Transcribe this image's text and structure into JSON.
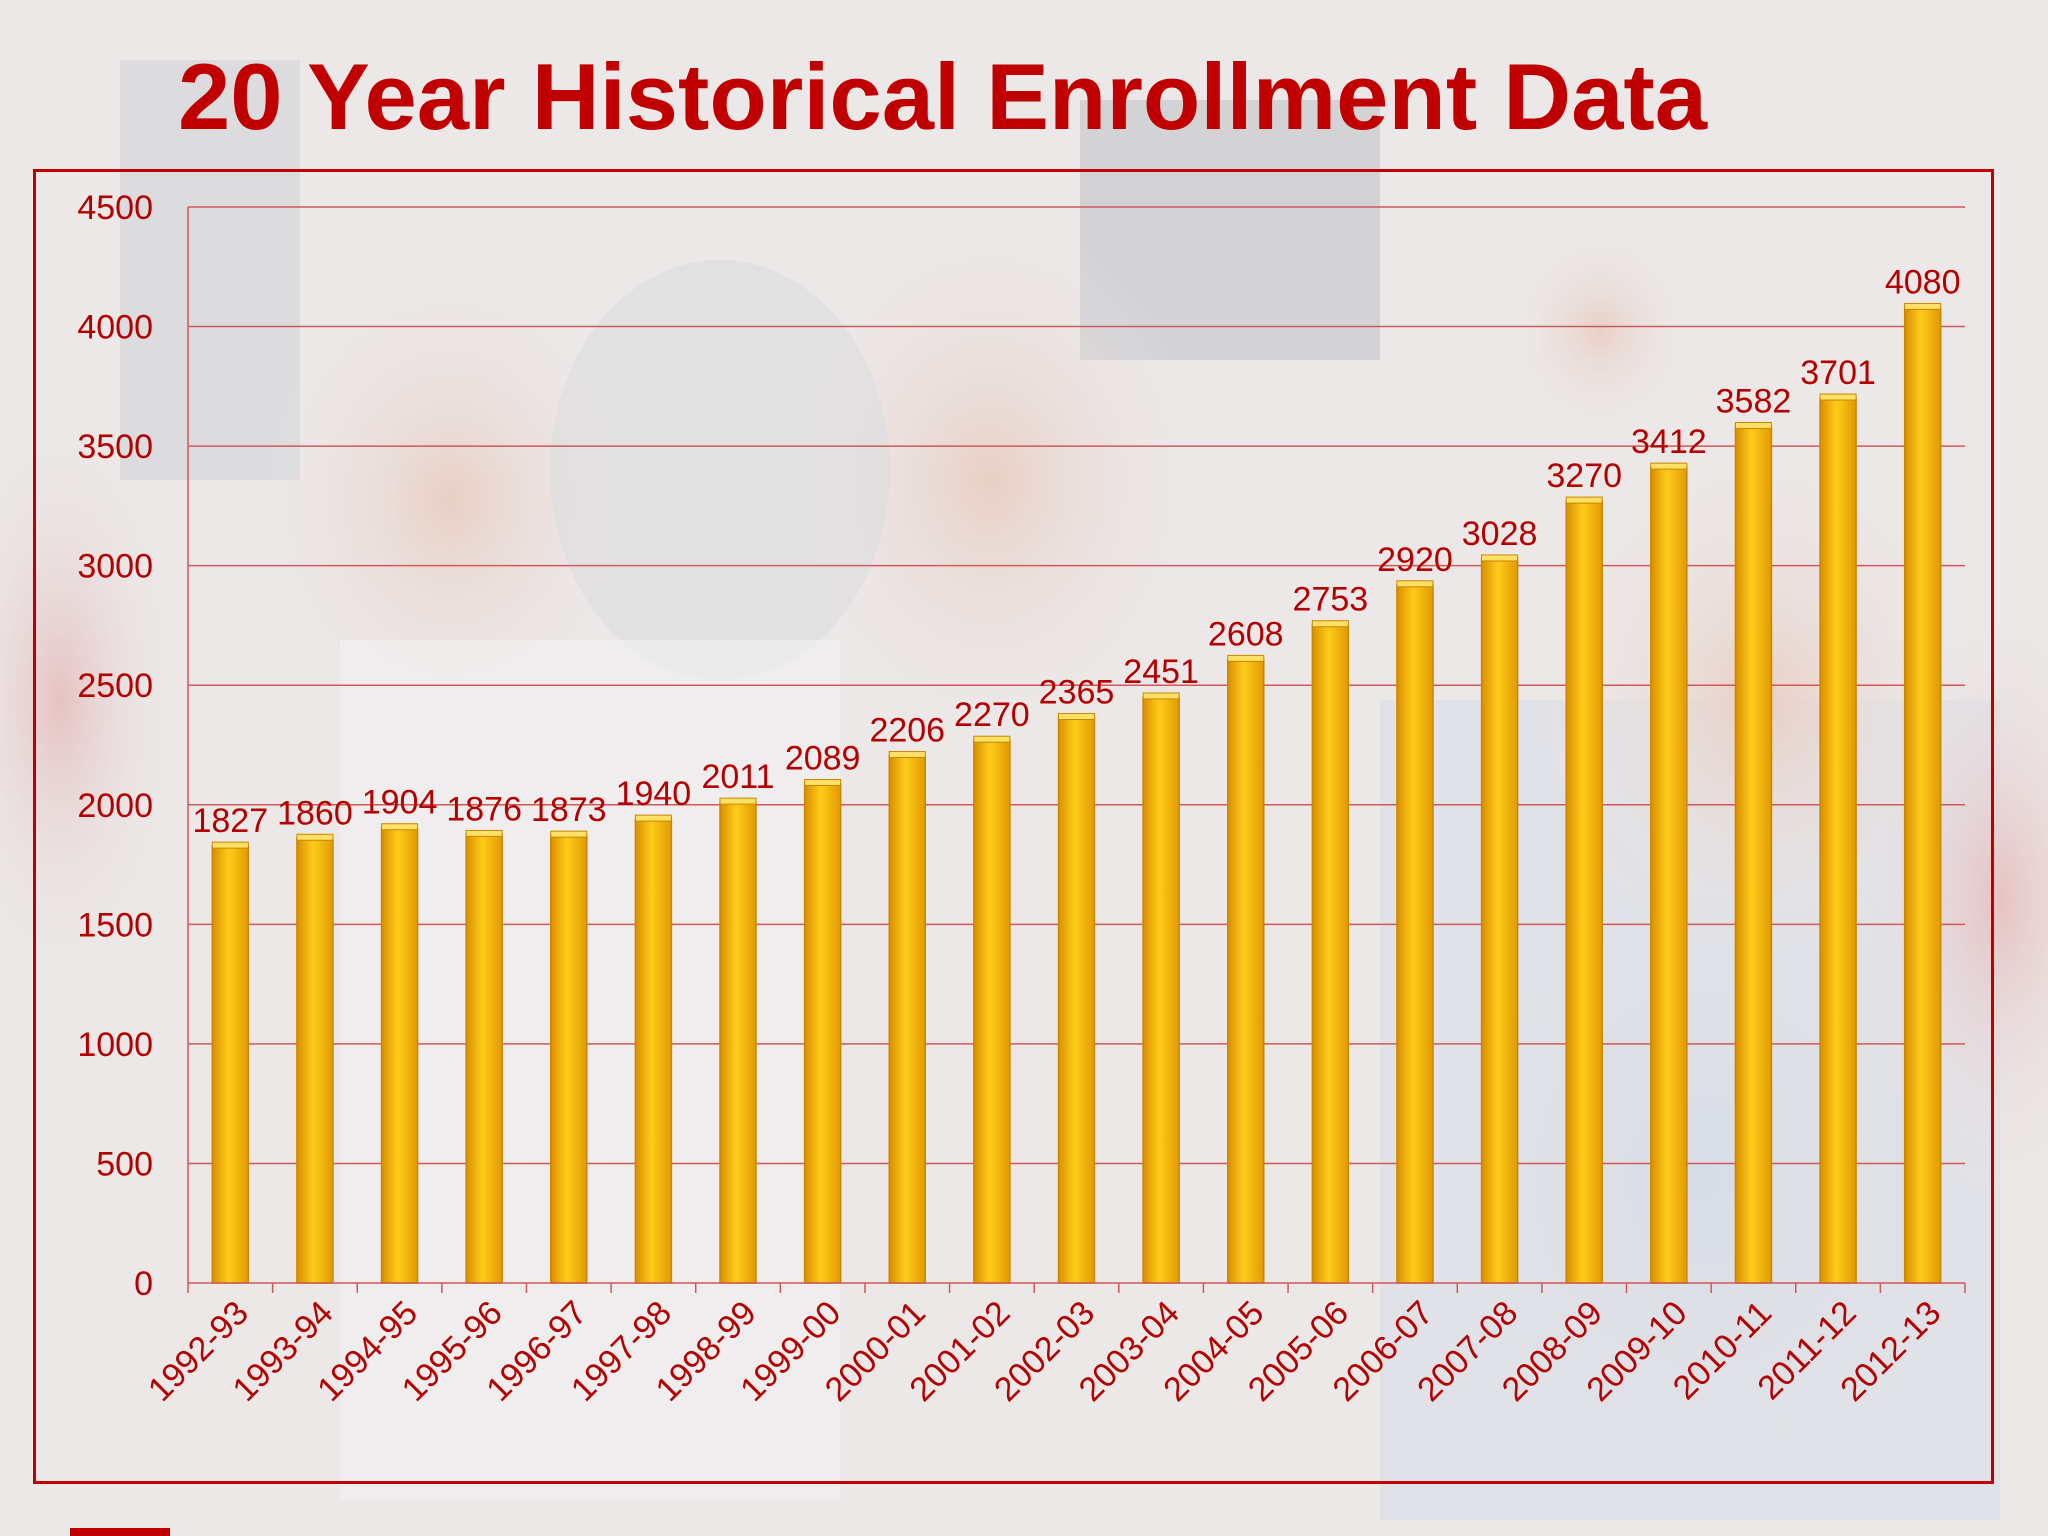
{
  "slide": {
    "title": "20 Year Historical Enrollment Data"
  },
  "colors": {
    "accent": "#c00000",
    "bar": "#f5b400",
    "bar_edge": "#c98600",
    "grid": "#d05858"
  },
  "chart_data": {
    "type": "bar",
    "title": "",
    "xlabel": "",
    "ylabel": "",
    "ylim": [
      0,
      4500
    ],
    "yticks": [
      0,
      500,
      1000,
      1500,
      2000,
      2500,
      3000,
      3500,
      4000,
      4500
    ],
    "grid": true,
    "legend": "none",
    "data_labels": true,
    "categories": [
      "1992-93",
      "1993-94",
      "1994-95",
      "1995-96",
      "1996-97",
      "1997-98",
      "1998-99",
      "1999-00",
      "2000-01",
      "2001-02",
      "2002-03",
      "2003-04",
      "2004-05",
      "2005-06",
      "2006-07",
      "2007-08",
      "2008-09",
      "2009-10",
      "2010-11",
      "2011-12",
      "2012-13"
    ],
    "values": [
      1827,
      1860,
      1904,
      1876,
      1873,
      1940,
      2011,
      2089,
      2206,
      2270,
      2365,
      2451,
      2608,
      2753,
      2920,
      3028,
      3270,
      3412,
      3582,
      3701,
      4080
    ]
  }
}
